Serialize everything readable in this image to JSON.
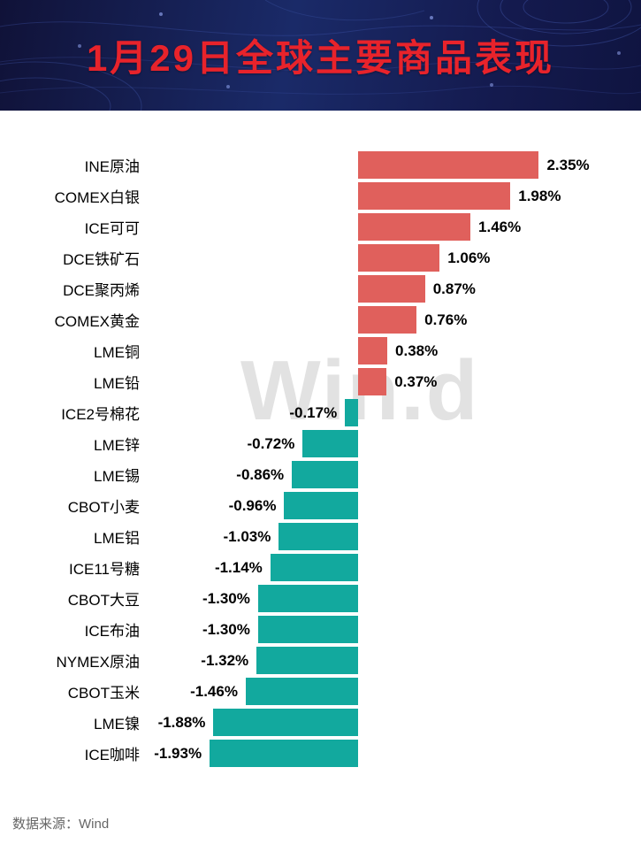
{
  "header": {
    "title": "1月29日全球主要商品表现"
  },
  "watermark": "Win.d",
  "footer": {
    "source": "数据来源：Wind"
  },
  "chart_data": {
    "type": "bar",
    "orientation": "horizontal",
    "title": "1月29日全球主要商品表现",
    "xlabel": "",
    "ylabel": "",
    "xlim": [
      -2.2,
      3.0
    ],
    "grid": false,
    "legend": false,
    "positive_color": "#e0605c",
    "negative_color": "#12a99e",
    "categories": [
      "INE原油",
      "COMEX白银",
      "ICE可可",
      "DCE铁矿石",
      "DCE聚丙烯",
      "COMEX黄金",
      "LME铜",
      "LME铅",
      "ICE2号棉花",
      "LME锌",
      "LME锡",
      "CBOT小麦",
      "LME铝",
      "ICE11号糖",
      "CBOT大豆",
      "ICE布油",
      "NYMEX原油",
      "CBOT玉米",
      "LME镍",
      "ICE咖啡"
    ],
    "values": [
      2.35,
      1.98,
      1.46,
      1.06,
      0.87,
      0.76,
      0.38,
      0.37,
      -0.17,
      -0.72,
      -0.86,
      -0.96,
      -1.03,
      -1.14,
      -1.3,
      -1.3,
      -1.32,
      -1.46,
      -1.88,
      -1.93
    ],
    "value_labels": [
      "2.35%",
      "1.98%",
      "1.46%",
      "1.06%",
      "0.87%",
      "0.76%",
      "0.38%",
      "0.37%",
      "-0.17%",
      "-0.72%",
      "-0.86%",
      "-0.96%",
      "-1.03%",
      "-1.14%",
      "-1.30%",
      "-1.30%",
      "-1.32%",
      "-1.46%",
      "-1.88%",
      "-1.93%"
    ]
  }
}
